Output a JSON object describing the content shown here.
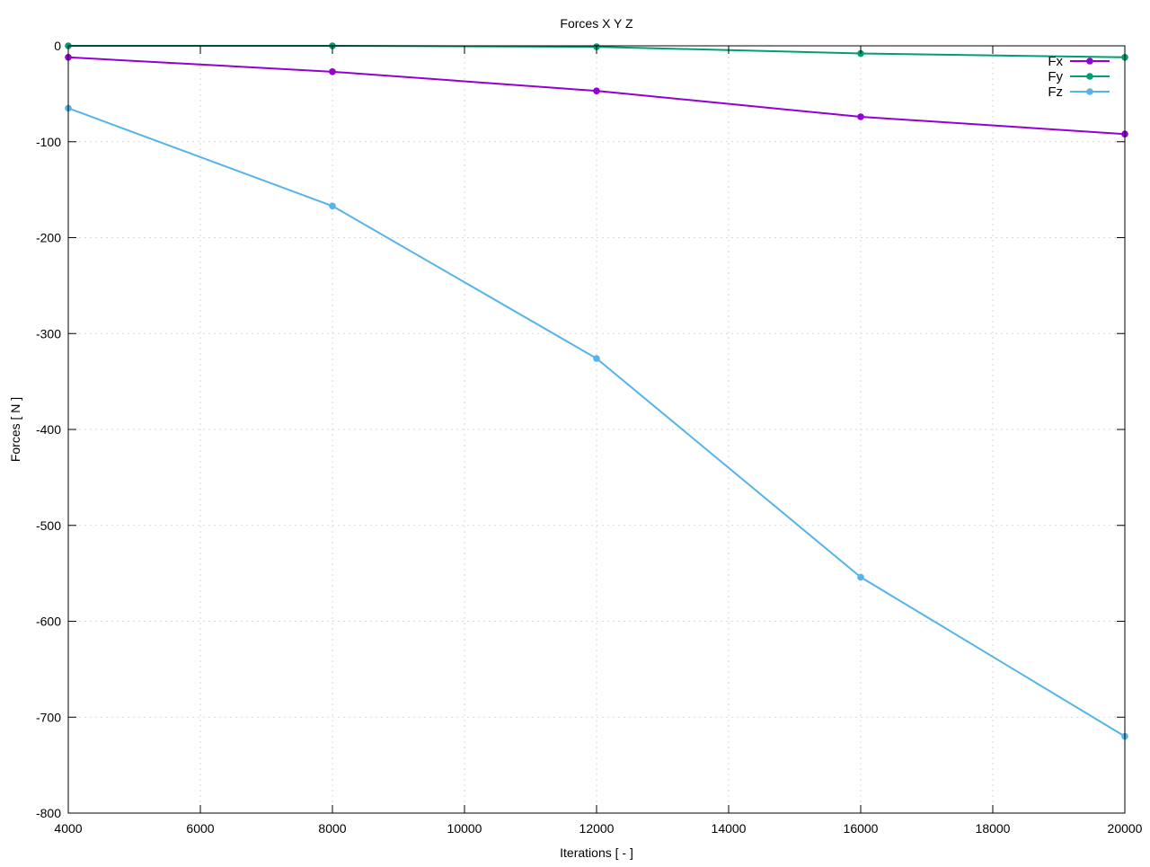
{
  "chart_data": {
    "type": "line",
    "title": "Forces X Y Z",
    "xlabel": "Iterations [ - ]",
    "ylabel": "Forces [ N ]",
    "xlim": [
      4000,
      20000
    ],
    "ylim": [
      -800,
      0
    ],
    "xticks": [
      4000,
      6000,
      8000,
      10000,
      12000,
      14000,
      16000,
      18000,
      20000
    ],
    "yticks": [
      0,
      -100,
      -200,
      -300,
      -400,
      -500,
      -600,
      -700,
      -800
    ],
    "grid": true,
    "legend_position": "top-right",
    "x": [
      4000,
      8000,
      12000,
      16000,
      20000
    ],
    "series": [
      {
        "name": "Fx",
        "color": "#9400d3",
        "values": [
          -12,
          -27,
          -47,
          -74,
          -92
        ]
      },
      {
        "name": "Fy",
        "color": "#009e73",
        "values": [
          0,
          0,
          -1,
          -8,
          -12
        ]
      },
      {
        "name": "Fz",
        "color": "#56b4e9",
        "values": [
          -65,
          -167,
          -326,
          -554,
          -720
        ]
      }
    ]
  }
}
